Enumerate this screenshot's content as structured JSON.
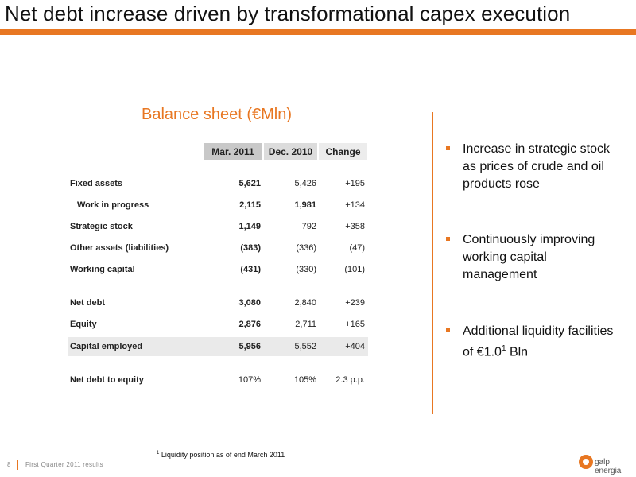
{
  "header": {
    "title": "Net debt increase driven by transformational capex execution"
  },
  "table": {
    "title": "Balance sheet (€Mln)",
    "columns": [
      "Mar. 2011",
      "Dec. 2010",
      "Change"
    ],
    "rows": [
      {
        "label": "Fixed assets",
        "mar2011": "5,621",
        "dec2010": "5,426",
        "change": "+195"
      },
      {
        "label": "Work in progress",
        "mar2011": "2,115",
        "dec2010": "1,981",
        "change": "+134"
      },
      {
        "label": "Strategic stock",
        "mar2011": "1,149",
        "dec2010": "792",
        "change": "+358"
      },
      {
        "label": "Other assets (liabilities)",
        "mar2011": "(383)",
        "dec2010": "(336)",
        "change": "(47)"
      },
      {
        "label": "Working capital",
        "mar2011": "(431)",
        "dec2010": "(330)",
        "change": "(101)"
      },
      {
        "label": "Net debt",
        "mar2011": "3,080",
        "dec2010": "2,840",
        "change": "+239"
      },
      {
        "label": "Equity",
        "mar2011": "2,876",
        "dec2010": "2,711",
        "change": "+165"
      },
      {
        "label": "Capital employed",
        "mar2011": "5,956",
        "dec2010": "5,552",
        "change": "+404"
      },
      {
        "label": "Net debt to equity",
        "mar2011": "107%",
        "dec2010": "105%",
        "change": "2.3 p.p."
      }
    ]
  },
  "bullets": [
    {
      "text": "Increase in strategic stock as prices of crude and oil products rose"
    },
    {
      "text": "Continuously  improving working capital management"
    },
    {
      "text": "Additional liquidity facilities of €1.0",
      "sup": "1",
      "suffix": " Bln"
    }
  ],
  "footnote": {
    "marker": "1",
    "text": " Liquidity position as of end March 2011"
  },
  "footer": {
    "page_number": "8",
    "text": "First Quarter 2011 results",
    "logo_text": "galp energia"
  },
  "colors": {
    "accent": "#e87722"
  }
}
